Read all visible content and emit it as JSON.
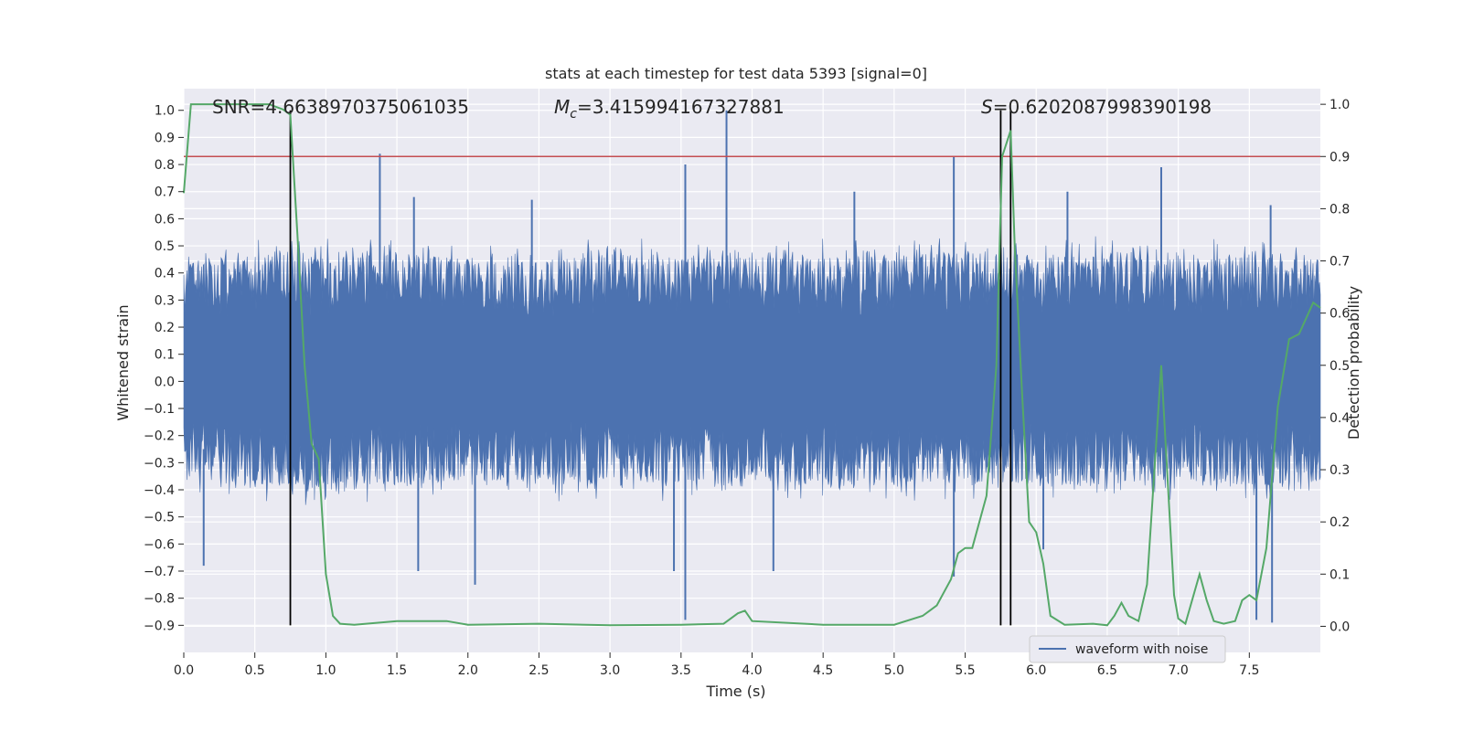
{
  "chart_data": {
    "type": "line",
    "title": "stats at each timestep for test data 5393 [signal=0]",
    "xlabel": "Time (s)",
    "ylabel": "Whitened strain",
    "y2label": "Detection probability",
    "xlim": [
      0.0,
      8.0
    ],
    "ylim": [
      -1.0,
      1.08
    ],
    "y2lim": [
      -0.05,
      1.03
    ],
    "x_ticks": [
      "0.0",
      "0.5",
      "1.0",
      "1.5",
      "2.0",
      "2.5",
      "3.0",
      "3.5",
      "4.0",
      "4.5",
      "5.0",
      "5.5",
      "6.0",
      "6.5",
      "7.0",
      "7.5"
    ],
    "y_ticks": [
      "1.0",
      "0.9",
      "0.8",
      "0.7",
      "0.6",
      "0.5",
      "0.4",
      "0.3",
      "0.2",
      "0.1",
      "0.0",
      "−0.1",
      "−0.2",
      "−0.3",
      "−0.4",
      "−0.5",
      "−0.6",
      "−0.7",
      "−0.8",
      "−0.9"
    ],
    "y2_ticks": [
      "1.0",
      "0.9",
      "0.8",
      "0.7",
      "0.6",
      "0.5",
      "0.4",
      "0.3",
      "0.2",
      "0.1",
      "0.0"
    ],
    "grid": true,
    "legend": {
      "placement": "bottom-right",
      "entries": [
        "waveform with noise"
      ]
    },
    "annotations": {
      "snr": "SNR=4.6638970375061035",
      "mc_symbol": "M",
      "mc_sub": "c",
      "mc_value": "=3.415994167327881",
      "s_symbol": "S",
      "s_value": "=0.6202087998390198"
    },
    "series": [
      {
        "name": "waveform with noise",
        "kind": "noise-envelope",
        "color": "#4c72b0",
        "envelope_upper": [
          [
            0.0,
            0.42
          ],
          [
            0.5,
            0.47
          ],
          [
            1.0,
            0.45
          ],
          [
            1.5,
            0.47
          ],
          [
            2.0,
            0.45
          ],
          [
            2.5,
            0.44
          ],
          [
            3.0,
            0.46
          ],
          [
            3.5,
            0.45
          ],
          [
            4.0,
            0.46
          ],
          [
            4.5,
            0.45
          ],
          [
            5.0,
            0.46
          ],
          [
            5.5,
            0.48
          ],
          [
            6.0,
            0.46
          ],
          [
            6.5,
            0.46
          ],
          [
            7.0,
            0.45
          ],
          [
            7.5,
            0.46
          ],
          [
            8.0,
            0.45
          ]
        ],
        "envelope_lower": [
          [
            0.0,
            -0.34
          ],
          [
            0.5,
            -0.38
          ],
          [
            1.0,
            -0.38
          ],
          [
            1.5,
            -0.37
          ],
          [
            2.0,
            -0.36
          ],
          [
            2.5,
            -0.37
          ],
          [
            3.0,
            -0.36
          ],
          [
            3.5,
            -0.37
          ],
          [
            4.0,
            -0.36
          ],
          [
            4.5,
            -0.37
          ],
          [
            5.0,
            -0.37
          ],
          [
            5.5,
            -0.38
          ],
          [
            6.0,
            -0.37
          ],
          [
            6.5,
            -0.37
          ],
          [
            7.0,
            -0.36
          ],
          [
            7.5,
            -0.38
          ],
          [
            8.0,
            -0.37
          ]
        ],
        "spikes": [
          [
            1.38,
            0.84
          ],
          [
            3.82,
            1.0
          ],
          [
            3.53,
            0.8
          ],
          [
            5.42,
            0.83
          ],
          [
            6.88,
            0.79
          ],
          [
            1.62,
            0.68
          ],
          [
            2.45,
            0.67
          ],
          [
            4.72,
            0.7
          ],
          [
            6.22,
            0.7
          ],
          [
            7.65,
            0.65
          ],
          [
            3.53,
            -0.88
          ],
          [
            7.55,
            -0.88
          ],
          [
            7.66,
            -0.89
          ],
          [
            2.05,
            -0.75
          ],
          [
            0.14,
            -0.68
          ],
          [
            1.65,
            -0.7
          ],
          [
            5.42,
            -0.72
          ],
          [
            3.45,
            -0.7
          ],
          [
            4.15,
            -0.7
          ],
          [
            6.05,
            -0.62
          ]
        ]
      },
      {
        "name": "detection probability",
        "axis": "right",
        "color": "#55a868",
        "points": [
          [
            0.0,
            0.83
          ],
          [
            0.05,
            1.0
          ],
          [
            0.1,
            1.0
          ],
          [
            0.2,
            1.0
          ],
          [
            0.5,
            1.0
          ],
          [
            0.6,
            1.0
          ],
          [
            0.7,
            0.99
          ],
          [
            0.75,
            0.98
          ],
          [
            0.8,
            0.75
          ],
          [
            0.85,
            0.5
          ],
          [
            0.9,
            0.35
          ],
          [
            0.95,
            0.32
          ],
          [
            1.0,
            0.1
          ],
          [
            1.05,
            0.02
          ],
          [
            1.1,
            0.005
          ],
          [
            1.2,
            0.003
          ],
          [
            1.5,
            0.01
          ],
          [
            1.85,
            0.01
          ],
          [
            2.0,
            0.003
          ],
          [
            2.5,
            0.005
          ],
          [
            3.0,
            0.002
          ],
          [
            3.5,
            0.003
          ],
          [
            3.8,
            0.005
          ],
          [
            3.9,
            0.025
          ],
          [
            3.95,
            0.03
          ],
          [
            4.0,
            0.01
          ],
          [
            4.5,
            0.003
          ],
          [
            5.0,
            0.003
          ],
          [
            5.2,
            0.02
          ],
          [
            5.3,
            0.04
          ],
          [
            5.4,
            0.09
          ],
          [
            5.45,
            0.14
          ],
          [
            5.5,
            0.15
          ],
          [
            5.55,
            0.15
          ],
          [
            5.65,
            0.25
          ],
          [
            5.72,
            0.5
          ],
          [
            5.76,
            0.9
          ],
          [
            5.82,
            0.95
          ],
          [
            5.85,
            0.72
          ],
          [
            5.9,
            0.45
          ],
          [
            5.95,
            0.2
          ],
          [
            6.0,
            0.18
          ],
          [
            6.05,
            0.12
          ],
          [
            6.1,
            0.02
          ],
          [
            6.2,
            0.003
          ],
          [
            6.4,
            0.005
          ],
          [
            6.5,
            0.002
          ],
          [
            6.55,
            0.02
          ],
          [
            6.6,
            0.045
          ],
          [
            6.65,
            0.02
          ],
          [
            6.72,
            0.01
          ],
          [
            6.78,
            0.08
          ],
          [
            6.88,
            0.5
          ],
          [
            6.97,
            0.06
          ],
          [
            7.0,
            0.015
          ],
          [
            7.05,
            0.005
          ],
          [
            7.15,
            0.1
          ],
          [
            7.2,
            0.05
          ],
          [
            7.25,
            0.01
          ],
          [
            7.32,
            0.005
          ],
          [
            7.4,
            0.01
          ],
          [
            7.45,
            0.05
          ],
          [
            7.5,
            0.06
          ],
          [
            7.55,
            0.05
          ],
          [
            7.62,
            0.15
          ],
          [
            7.7,
            0.42
          ],
          [
            7.78,
            0.55
          ],
          [
            7.85,
            0.56
          ],
          [
            7.95,
            0.62
          ],
          [
            8.0,
            0.61
          ]
        ]
      }
    ],
    "threshold_line": {
      "axis": "right",
      "value": 0.9,
      "color": "#c44e52"
    },
    "vertical_markers": [
      0.75,
      5.75,
      5.82
    ]
  }
}
